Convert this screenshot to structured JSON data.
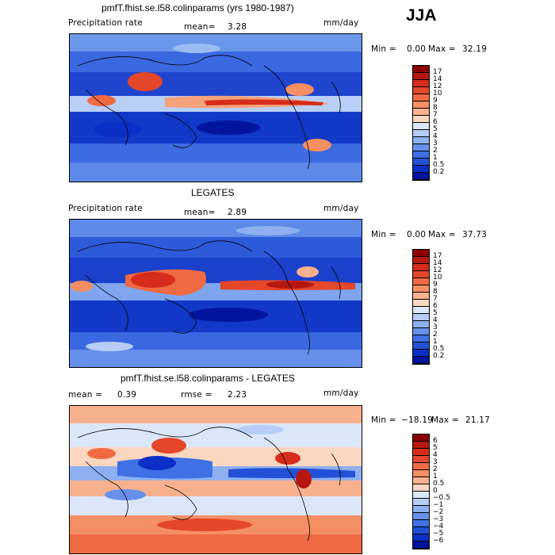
{
  "season": "JJA",
  "panels": [
    {
      "title": "pmfT.fhist.se.l58.colinparams (yrs 1980-1987)",
      "left_label": "Precipitation rate",
      "mean_label": "mean=",
      "mean_value": "3.28",
      "units": "mm/day",
      "min_label": "Min =",
      "min_value": "0.00",
      "max_label": "Max =",
      "max_value": "32.19",
      "colorbar_ticks": [
        "17",
        "14",
        "12",
        "10",
        "9",
        "8",
        "7",
        "6",
        "5",
        "4",
        "3",
        "2",
        "1",
        "0.5",
        "0.2"
      ],
      "colorbar_colors": [
        "#8b0000",
        "#b5160f",
        "#d62d1a",
        "#e5472a",
        "#ef6a43",
        "#f48e63",
        "#f8b18e",
        "#fbd7c0",
        "#dbe7f9",
        "#b7cdf5",
        "#8eb0f0",
        "#6690eb",
        "#3f70e4",
        "#2351d6",
        "#0b2fc6",
        "#00149e"
      ]
    },
    {
      "title": "LEGATES",
      "left_label": "Precipitation rate",
      "mean_label": "mean=",
      "mean_value": "2.89",
      "units": "mm/day",
      "min_label": "Min =",
      "min_value": "0.00",
      "max_label": "Max =",
      "max_value": "37.73",
      "colorbar_ticks": [
        "17",
        "14",
        "12",
        "10",
        "9",
        "8",
        "7",
        "6",
        "5",
        "4",
        "3",
        "2",
        "1",
        "0.5",
        "0.2"
      ],
      "colorbar_colors": [
        "#8b0000",
        "#b5160f",
        "#d62d1a",
        "#e5472a",
        "#ef6a43",
        "#f48e63",
        "#f8b18e",
        "#fbd7c0",
        "#dbe7f9",
        "#b7cdf5",
        "#8eb0f0",
        "#6690eb",
        "#3f70e4",
        "#2351d6",
        "#0b2fc6",
        "#00149e"
      ]
    },
    {
      "title": "pmfT.fhist.se.l58.colinparams - LEGATES",
      "left_label": "mean =",
      "mean_label": "",
      "mean_value": "0.39",
      "rmse_label": "rmse =",
      "rmse_value": "2.23",
      "units": "mm/day",
      "min_label": "Min =",
      "min_value": "−18.19",
      "max_label": "Max =",
      "max_value": "21.17",
      "colorbar_ticks": [
        "6",
        "5",
        "4",
        "3",
        "2",
        "1",
        "0.5",
        "0",
        "−0.5",
        "−1",
        "−2",
        "−3",
        "−4",
        "−5",
        "−6"
      ],
      "colorbar_colors": [
        "#8b0000",
        "#b5160f",
        "#d62d1a",
        "#e5472a",
        "#ef6a43",
        "#f48e63",
        "#f8b18e",
        "#fbd7c0",
        "#dbe7f9",
        "#b7cdf5",
        "#8eb0f0",
        "#6690eb",
        "#3f70e4",
        "#2351d6",
        "#0b2fc6",
        "#00149e"
      ]
    }
  ]
}
